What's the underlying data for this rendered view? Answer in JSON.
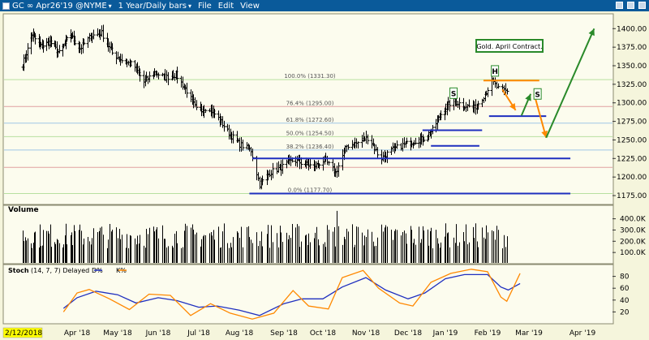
{
  "window": {
    "title": "GC ∞ Apr26'19 @NYME",
    "timeframe": "1 Year/Daily bars",
    "menu": [
      "File",
      "Edit",
      "View"
    ]
  },
  "chart_data": [
    {
      "type": "candlestick",
      "panel": "price",
      "x_axis": {
        "tick_labels": [
          "2/12/2018",
          "Apr '18",
          "May '18",
          "Jun '18",
          "Jul '18",
          "Aug '18",
          "Sep '18",
          "Oct '18",
          "Nov '18",
          "Dec '18",
          "Jan '19",
          "Feb '19",
          "Mar '19",
          "Apr '19"
        ],
        "range": [
          "2018-02-12",
          "2019-04-26"
        ]
      },
      "y_axis": {
        "side": "right",
        "range": [
          1163,
          1420
        ],
        "tick_values": [
          1175,
          1200,
          1225,
          1250,
          1275,
          1300,
          1325,
          1350,
          1375,
          1400
        ],
        "tick_labels": [
          "1175.00",
          "1200.00",
          "1225.00",
          "1250.00",
          "1275.00",
          "1300.00",
          "1325.00",
          "1350.00",
          "1375.00",
          "1400.00"
        ]
      },
      "close_path": [
        [
          "2018-02-12",
          1352
        ],
        [
          "2018-02-20",
          1392
        ],
        [
          "2018-02-28",
          1376
        ],
        [
          "2018-03-08",
          1382
        ],
        [
          "2018-03-16",
          1367
        ],
        [
          "2018-03-26",
          1392
        ],
        [
          "2018-04-03",
          1373
        ],
        [
          "2018-04-11",
          1390
        ],
        [
          "2018-04-19",
          1394
        ],
        [
          "2018-04-27",
          1367
        ],
        [
          "2018-05-05",
          1356
        ],
        [
          "2018-05-13",
          1351
        ],
        [
          "2018-05-21",
          1328
        ],
        [
          "2018-05-29",
          1341
        ],
        [
          "2018-06-06",
          1334
        ],
        [
          "2018-06-14",
          1338
        ],
        [
          "2018-06-22",
          1316
        ],
        [
          "2018-06-30",
          1287
        ],
        [
          "2018-07-08",
          1295
        ],
        [
          "2018-07-16",
          1279
        ],
        [
          "2018-07-24",
          1259
        ],
        [
          "2018-08-01",
          1244
        ],
        [
          "2018-08-09",
          1236
        ],
        [
          "2018-08-15",
          1190
        ],
        [
          "2018-08-22",
          1206
        ],
        [
          "2018-08-31",
          1214
        ],
        [
          "2018-09-08",
          1223
        ],
        [
          "2018-09-16",
          1218
        ],
        [
          "2018-09-24",
          1214
        ],
        [
          "2018-10-02",
          1223
        ],
        [
          "2018-10-10",
          1206
        ],
        [
          "2018-10-18",
          1242
        ],
        [
          "2018-10-26",
          1246
        ],
        [
          "2018-11-03",
          1254
        ],
        [
          "2018-11-11",
          1224
        ],
        [
          "2018-11-19",
          1236
        ],
        [
          "2018-11-27",
          1243
        ],
        [
          "2018-12-05",
          1248
        ],
        [
          "2018-12-13",
          1251
        ],
        [
          "2018-12-21",
          1263
        ],
        [
          "2018-12-29",
          1288
        ],
        [
          "2019-01-06",
          1303
        ],
        [
          "2019-01-14",
          1297
        ],
        [
          "2019-01-22",
          1293
        ],
        [
          "2019-01-30",
          1312
        ],
        [
          "2019-02-04",
          1329
        ],
        [
          "2019-02-08",
          1319
        ],
        [
          "2019-02-14",
          1315
        ]
      ],
      "fib_levels": [
        {
          "label": "100.0% (1331.30)",
          "value": 1331.3,
          "color": "#b8e0a0"
        },
        {
          "label": "76.4% (1295.00)",
          "value": 1295.0,
          "color": "#e0a0a0"
        },
        {
          "label": "61.8% (1272.60)",
          "value": 1272.6,
          "color": "#9fc6e6"
        },
        {
          "label": "50.0% (1254.50)",
          "value": 1254.5,
          "color": "#b8e0a0"
        },
        {
          "label": "38.2% (1236.40)",
          "value": 1236.4,
          "color": "#9fc6e6"
        },
        {
          "label": "0.0% (1177.70)",
          "value": 1177.7,
          "color": "#b8e0a0"
        }
      ],
      "extra_levels": [
        {
          "value": 1213,
          "color": "#e0a0a0"
        }
      ],
      "trend_lines": [
        {
          "name": "support-1225",
          "from": [
            "2018-08-10",
            1225
          ],
          "to": [
            "2019-03-25",
            1225
          ],
          "color": "#1f2fbf"
        },
        {
          "name": "support-1177",
          "from": [
            "2018-08-08",
            1177.7
          ],
          "to": [
            "2019-03-25",
            1177.7
          ],
          "color": "#1f2fbf"
        },
        {
          "name": "line-1263",
          "from": [
            "2018-12-13",
            1263
          ],
          "to": [
            "2019-01-28",
            1263
          ],
          "color": "#1f2fbf"
        },
        {
          "name": "line-1242",
          "from": [
            "2018-12-20",
            1242
          ],
          "to": [
            "2019-01-26",
            1242
          ],
          "color": "#1f2fbf"
        },
        {
          "name": "line-1282",
          "from": [
            "2019-02-02",
            1282
          ],
          "to": [
            "2019-03-11",
            1282
          ],
          "color": "#1f2fbf"
        },
        {
          "name": "line-1330",
          "from": [
            "2019-01-29",
            1330
          ],
          "to": [
            "2019-03-07",
            1330
          ],
          "color": "#ff8800"
        }
      ],
      "arrows": [
        {
          "name": "arrow-down-1",
          "from": [
            "2019-02-11",
            1318
          ],
          "to": [
            "2019-02-20",
            1290
          ],
          "color": "#ff8800"
        },
        {
          "name": "arrow-up-1",
          "from": [
            "2019-02-24",
            1283
          ],
          "to": [
            "2019-03-02",
            1312
          ],
          "color": "#2a8a2a"
        },
        {
          "name": "arrow-down-2",
          "from": [
            "2019-03-04",
            1312
          ],
          "to": [
            "2019-03-11",
            1253
          ],
          "color": "#ff8800"
        },
        {
          "name": "arrow-up-long",
          "from": [
            "2019-03-11",
            1253
          ],
          "to": [
            "2019-04-11",
            1400
          ],
          "color": "#2a8a2a"
        }
      ],
      "pattern_labels": [
        {
          "text": "S",
          "date": "2019-01-07",
          "value": 1313
        },
        {
          "text": "H",
          "date": "2019-02-06",
          "value": 1343
        },
        {
          "text": "S",
          "date": "2019-03-06",
          "value": 1312
        }
      ],
      "annotation": "Gold. April Contract."
    },
    {
      "type": "bar",
      "panel": "volume",
      "title": "Volume",
      "y_axis": {
        "range": [
          0,
          520000
        ],
        "tick_values": [
          100000,
          200000,
          300000,
          400000
        ],
        "tick_labels": [
          "100.0K",
          "200.0K",
          "300.0K",
          "400.0K"
        ]
      },
      "approx_daily_volume": 250000,
      "max_spike": {
        "date": "2018-10-11",
        "value": 470000
      }
    },
    {
      "type": "line",
      "panel": "stochastic",
      "title": "Stoch",
      "params": "(14, 7, 7) Delayed",
      "legend": [
        {
          "label": "D%",
          "color": "#1f2fbf"
        },
        {
          "label": "K%",
          "color": "#ff8800"
        }
      ],
      "y_axis": {
        "range": [
          0,
          100
        ],
        "tick_values": [
          20,
          40,
          60,
          80
        ],
        "tick_labels": [
          "20",
          "40",
          "60",
          "80"
        ]
      },
      "series": [
        {
          "name": "D%",
          "points": [
            [
              "2018-03-20",
              26
            ],
            [
              "2018-04-01",
              44
            ],
            [
              "2018-04-15",
              55
            ],
            [
              "2018-05-01",
              49
            ],
            [
              "2018-05-15",
              35
            ],
            [
              "2018-06-01",
              44
            ],
            [
              "2018-06-15",
              39
            ],
            [
              "2018-07-01",
              28
            ],
            [
              "2018-07-15",
              30
            ],
            [
              "2018-08-01",
              23
            ],
            [
              "2018-08-15",
              14
            ],
            [
              "2018-09-01",
              34
            ],
            [
              "2018-09-15",
              42
            ],
            [
              "2018-10-01",
              42
            ],
            [
              "2018-10-15",
              62
            ],
            [
              "2018-11-01",
              78
            ],
            [
              "2018-11-15",
              57
            ],
            [
              "2018-12-01",
              42
            ],
            [
              "2018-12-15",
              52
            ],
            [
              "2019-01-01",
              76
            ],
            [
              "2019-01-15",
              83
            ],
            [
              "2019-02-01",
              83
            ],
            [
              "2019-02-10",
              62
            ],
            [
              "2019-02-15",
              57
            ],
            [
              "2019-02-23",
              68
            ]
          ]
        },
        {
          "name": "K%",
          "points": [
            [
              "2018-03-20",
              20
            ],
            [
              "2018-04-01",
              52
            ],
            [
              "2018-04-10",
              58
            ],
            [
              "2018-04-25",
              42
            ],
            [
              "2018-05-10",
              24
            ],
            [
              "2018-05-25",
              50
            ],
            [
              "2018-06-10",
              48
            ],
            [
              "2018-06-25",
              14
            ],
            [
              "2018-07-10",
              34
            ],
            [
              "2018-07-25",
              18
            ],
            [
              "2018-08-10",
              8
            ],
            [
              "2018-08-25",
              18
            ],
            [
              "2018-09-08",
              56
            ],
            [
              "2018-09-20",
              30
            ],
            [
              "2018-10-05",
              25
            ],
            [
              "2018-10-15",
              78
            ],
            [
              "2018-10-30",
              90
            ],
            [
              "2018-11-10",
              60
            ],
            [
              "2018-11-25",
              35
            ],
            [
              "2018-12-05",
              30
            ],
            [
              "2018-12-20",
              70
            ],
            [
              "2019-01-05",
              85
            ],
            [
              "2019-01-20",
              92
            ],
            [
              "2019-02-01",
              88
            ],
            [
              "2019-02-10",
              45
            ],
            [
              "2019-02-14",
              38
            ],
            [
              "2019-02-23",
              85
            ]
          ]
        }
      ]
    }
  ]
}
